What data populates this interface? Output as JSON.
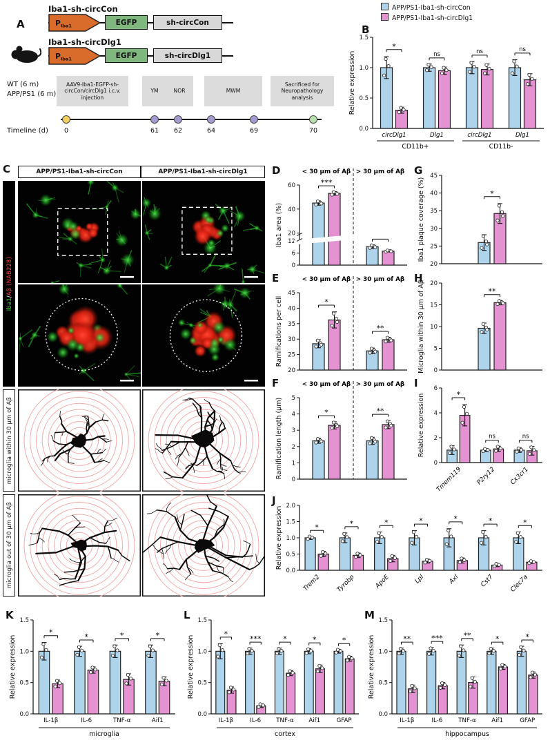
{
  "colors": {
    "blue": "#AED4EC",
    "pink": "#E592D3",
    "bar_stroke": "#222222",
    "timeline_yellow": "#F0D060",
    "timeline_purple": "#A49BD0",
    "timeline_green": "#B9E0B0",
    "ring_red": "#F2AAAA",
    "green_signal": "#3AD43A",
    "red_signal": "#E82212"
  },
  "legend": {
    "items": [
      {
        "label": "APP/PS1-Iba1-sh-circCon",
        "color": "blue"
      },
      {
        "label": "APP/PS1-Iba1-sh-circDlg1",
        "color": "pink"
      }
    ]
  },
  "panel_a": {
    "letter": "A",
    "constructs": [
      {
        "title": "Iba1-sh-circCon",
        "promoter_main": "P",
        "promoter_sub": "Iba1",
        "gene": "EGFP",
        "insert": "sh-circCon"
      },
      {
        "title": "Iba1-sh-circDlg1",
        "promoter_main": "P",
        "promoter_sub": "Iba1",
        "gene": "EGFP",
        "insert": "sh-circDlg1"
      }
    ],
    "subjects": [
      "WT (6 m)",
      "APP/PS1 (6 m)"
    ],
    "events": [
      {
        "label": "AAV9-Iba1-EGFP-sh-circCon/circDlg1 i.c.v. injection"
      },
      {
        "label": "YM"
      },
      {
        "label": "NOR"
      },
      {
        "label": "MWM"
      },
      {
        "label": "Sacrificed for Neuropathology analysis"
      }
    ],
    "timeline_label": "Timeline (d)",
    "days": [
      "0",
      "61",
      "62",
      "64",
      "69",
      "70"
    ]
  },
  "panel_c": {
    "letter": "C",
    "col_headers": [
      "APP/PS1-Iba1-sh-circCon",
      "APP/PS1-Iba1-sh-circDlg1"
    ],
    "row_label_iba1": {
      "green": "Iba1",
      "sep": "/",
      "red": "Aβ (NAB228)"
    },
    "row_label_within": "microglia within 30 μm of Aβ",
    "row_label_out": "microglia out of 30 μm of Aβ"
  },
  "chart_data": [
    {
      "id": "B",
      "letter": "B",
      "type": "bar",
      "ylabel": "Relative expression",
      "ylim": [
        0,
        1.5
      ],
      "yticks": [
        "0.0",
        "0.5",
        "1.0",
        "1.5"
      ],
      "categories": [
        "circDlg1",
        "Dlg1",
        "circDlg1",
        "Dlg1"
      ],
      "italic_labels": true,
      "n_dots": 3,
      "group_labels": [
        {
          "label": "CD11b+",
          "from": 0,
          "to": 1
        },
        {
          "label": "CD11b-",
          "from": 2,
          "to": 3
        }
      ],
      "series": [
        {
          "name": "APP/PS1-Iba1-sh-circCon",
          "color": "blue",
          "values": [
            1.0,
            1.0,
            1.0,
            1.0
          ],
          "errors": [
            0.18,
            0.06,
            0.1,
            0.13
          ]
        },
        {
          "name": "APP/PS1-Iba1-sh-circDlg1",
          "color": "pink",
          "values": [
            0.3,
            0.95,
            0.97,
            0.8
          ],
          "errors": [
            0.05,
            0.06,
            0.09,
            0.1
          ]
        }
      ],
      "sig": [
        "*",
        "ns",
        "ns",
        "ns"
      ]
    },
    {
      "id": "D",
      "letter": "D",
      "type": "bar",
      "ylabel": "Iba1 area (%)",
      "axis_break": {
        "lower": [
          0,
          12
        ],
        "upper": [
          20,
          60
        ],
        "lower_frac": 0.3,
        "gap_frac": 0.1
      },
      "yticks_lower": [
        "0",
        "6",
        "12"
      ],
      "yticks_upper": [
        "20",
        "40",
        "60"
      ],
      "split_title": [
        "< 30 μm of Aβ",
        "> 30 μm of Aβ"
      ],
      "categories": [
        "< 30 μm of Aβ",
        "> 30 μm of Aβ"
      ],
      "hide_cat_labels": true,
      "n_dots": 4,
      "series": [
        {
          "name": "sh-circCon",
          "color": "blue",
          "values": [
            45,
            9.2
          ],
          "errors": [
            1.8,
            0.9
          ]
        },
        {
          "name": "sh-circDlg1",
          "color": "pink",
          "values": [
            53,
            7.0
          ],
          "errors": [
            1.5,
            0.4
          ]
        }
      ],
      "sig": [
        "***",
        "*"
      ]
    },
    {
      "id": "E",
      "letter": "E",
      "type": "bar",
      "ylabel": "Ramifications per cell",
      "ylim": [
        20,
        45
      ],
      "yticks": [
        "20",
        "25",
        "30",
        "35",
        "40",
        "45"
      ],
      "split_title": [
        "< 30 μm of Aβ",
        "> 30 μm of Aβ"
      ],
      "categories": [
        "< 30 μm of Aβ",
        "> 30 μm of Aβ"
      ],
      "hide_cat_labels": true,
      "n_dots": 4,
      "series": [
        {
          "name": "sh-circCon",
          "color": "blue",
          "values": [
            28.5,
            26.2
          ],
          "errors": [
            1.3,
            0.9
          ]
        },
        {
          "name": "sh-circDlg1",
          "color": "pink",
          "values": [
            36.2,
            29.8
          ],
          "errors": [
            2.6,
            0.8
          ]
        }
      ],
      "sig": [
        "*",
        "**"
      ]
    },
    {
      "id": "F",
      "letter": "F",
      "type": "bar",
      "ylabel": "Ramification length (μm)",
      "ylim": [
        0,
        5
      ],
      "yticks": [
        "0",
        "1",
        "2",
        "3",
        "4",
        "5"
      ],
      "split_title": [
        "< 30 μm of Aβ",
        "> 30 μm of Aβ"
      ],
      "categories": [
        "< 30 μm of Aβ",
        "> 30 μm of Aβ"
      ],
      "hide_cat_labels": true,
      "n_dots": 4,
      "series": [
        {
          "name": "sh-circCon",
          "color": "blue",
          "values": [
            2.35,
            2.35
          ],
          "errors": [
            0.15,
            0.22
          ]
        },
        {
          "name": "sh-circDlg1",
          "color": "pink",
          "values": [
            3.3,
            3.35
          ],
          "errors": [
            0.22,
            0.25
          ]
        }
      ],
      "sig": [
        "*",
        "**"
      ]
    },
    {
      "id": "G",
      "letter": "G",
      "type": "bar",
      "ylabel": "Iba1 plaque coverage (%)",
      "ylim": [
        20,
        45
      ],
      "yticks": [
        "20",
        "25",
        "30",
        "35",
        "40",
        "45"
      ],
      "categories": [
        ""
      ],
      "hide_cat_labels": true,
      "n_dots": 4,
      "series": [
        {
          "name": "sh-circCon",
          "color": "blue",
          "values": [
            26.0
          ],
          "errors": [
            2.2
          ]
        },
        {
          "name": "sh-circDlg1",
          "color": "pink",
          "values": [
            34.2
          ],
          "errors": [
            2.8
          ]
        }
      ],
      "sig": [
        "*"
      ]
    },
    {
      "id": "H",
      "letter": "H",
      "type": "bar",
      "ylabel": "Microglia within 30 μm of Aβ",
      "ylim": [
        0,
        20
      ],
      "yticks": [
        "0",
        "5",
        "10",
        "15",
        "20"
      ],
      "categories": [
        ""
      ],
      "hide_cat_labels": true,
      "n_dots": 4,
      "series": [
        {
          "name": "sh-circCon",
          "color": "blue",
          "values": [
            9.6
          ],
          "errors": [
            1.2
          ]
        },
        {
          "name": "sh-circDlg1",
          "color": "pink",
          "values": [
            15.5
          ],
          "errors": [
            0.5
          ]
        }
      ],
      "sig": [
        "**"
      ]
    },
    {
      "id": "I",
      "letter": "I",
      "type": "bar",
      "ylabel": "Relative expression",
      "ylim": [
        0,
        6
      ],
      "yticks": [
        "0",
        "2",
        "4",
        "6"
      ],
      "categories": [
        "Tmem119",
        "P2ry12",
        "Cx3cr1"
      ],
      "italic_labels": true,
      "rotate_labels": true,
      "n_dots": 3,
      "series": [
        {
          "name": "sh-circCon",
          "color": "blue",
          "values": [
            1.0,
            1.0,
            1.0
          ],
          "errors": [
            0.35,
            0.12,
            0.18
          ]
        },
        {
          "name": "sh-circDlg1",
          "color": "pink",
          "values": [
            3.8,
            1.1,
            0.95
          ],
          "errors": [
            0.85,
            0.22,
            0.35
          ]
        }
      ],
      "sig": [
        "*",
        "ns",
        "ns"
      ]
    },
    {
      "id": "J",
      "letter": "J",
      "type": "bar",
      "ylabel": "Relative expression",
      "ylim": [
        0,
        2
      ],
      "yticks": [
        "0.0",
        "0.5",
        "1.0",
        "1.5",
        "2.0"
      ],
      "categories": [
        "Trem2",
        "Tyrobp",
        "ApoE",
        "Lpl",
        "Axl",
        "Cst7",
        "Clec7a"
      ],
      "italic_labels": true,
      "rotate_labels": true,
      "n_dots": 3,
      "series": [
        {
          "name": "sh-circCon",
          "color": "blue",
          "values": [
            1.0,
            1.0,
            1.0,
            1.0,
            1.0,
            1.0,
            1.0
          ],
          "errors": [
            0.05,
            0.15,
            0.18,
            0.22,
            0.28,
            0.22,
            0.18
          ]
        },
        {
          "name": "sh-circDlg1",
          "color": "pink",
          "values": [
            0.5,
            0.46,
            0.36,
            0.28,
            0.3,
            0.16,
            0.25
          ],
          "errors": [
            0.08,
            0.07,
            0.1,
            0.06,
            0.08,
            0.05,
            0.04
          ]
        }
      ],
      "sig": [
        "*",
        "*",
        "*",
        "*",
        "*",
        "*",
        "*"
      ]
    },
    {
      "id": "K",
      "letter": "K",
      "type": "bar",
      "ylabel": "Relative expression",
      "ylim": [
        0,
        1.5
      ],
      "yticks": [
        "0.0",
        "0.5",
        "1.0",
        "1.5"
      ],
      "categories": [
        "IL-1β",
        "IL-6",
        "TNF-α",
        "Aif1"
      ],
      "xlabel": "microglia",
      "n_dots": 3,
      "series": [
        {
          "name": "sh-circCon",
          "color": "blue",
          "values": [
            1.0,
            1.0,
            1.0,
            1.0
          ],
          "errors": [
            0.14,
            0.08,
            0.1,
            0.1
          ]
        },
        {
          "name": "sh-circDlg1",
          "color": "pink",
          "values": [
            0.48,
            0.7,
            0.55,
            0.52
          ],
          "errors": [
            0.06,
            0.05,
            0.09,
            0.07
          ]
        }
      ],
      "sig": [
        "*",
        "*",
        "*",
        "*"
      ]
    },
    {
      "id": "L",
      "letter": "L",
      "type": "bar",
      "ylabel": "Relative expression",
      "ylim": [
        0,
        1.5
      ],
      "yticks": [
        "0.0",
        "0.5",
        "1.0",
        "1.5"
      ],
      "categories": [
        "IL-1β",
        "IL-6",
        "TNF-α",
        "Aif1",
        "GFAP"
      ],
      "xlabel": "cortex",
      "n_dots": 3,
      "series": [
        {
          "name": "sh-circCon",
          "color": "blue",
          "values": [
            1.0,
            1.0,
            1.0,
            1.0,
            1.0
          ],
          "errors": [
            0.12,
            0.05,
            0.05,
            0.04,
            0.03
          ]
        },
        {
          "name": "sh-circDlg1",
          "color": "pink",
          "values": [
            0.38,
            0.13,
            0.65,
            0.72,
            0.88
          ],
          "errors": [
            0.05,
            0.03,
            0.04,
            0.06,
            0.04
          ]
        }
      ],
      "sig": [
        "*",
        "***",
        "*",
        "*",
        "*"
      ]
    },
    {
      "id": "M",
      "letter": "M",
      "type": "bar",
      "ylabel": "Relative expression",
      "ylim": [
        0,
        1.5
      ],
      "yticks": [
        "0.0",
        "0.5",
        "1.0",
        "1.5"
      ],
      "categories": [
        "IL-1β",
        "IL-6",
        "TNF-α",
        "Aif1",
        "GFAP"
      ],
      "xlabel": "hippocampus",
      "n_dots": 3,
      "series": [
        {
          "name": "sh-circCon",
          "color": "blue",
          "values": [
            1.0,
            1.0,
            1.0,
            1.0,
            1.0
          ],
          "errors": [
            0.05,
            0.06,
            0.1,
            0.05,
            0.08
          ]
        },
        {
          "name": "sh-circDlg1",
          "color": "pink",
          "values": [
            0.4,
            0.45,
            0.5,
            0.75,
            0.62
          ],
          "errors": [
            0.06,
            0.05,
            0.09,
            0.04,
            0.05
          ]
        }
      ],
      "sig": [
        "**",
        "***",
        "**",
        "*",
        "*"
      ]
    }
  ]
}
